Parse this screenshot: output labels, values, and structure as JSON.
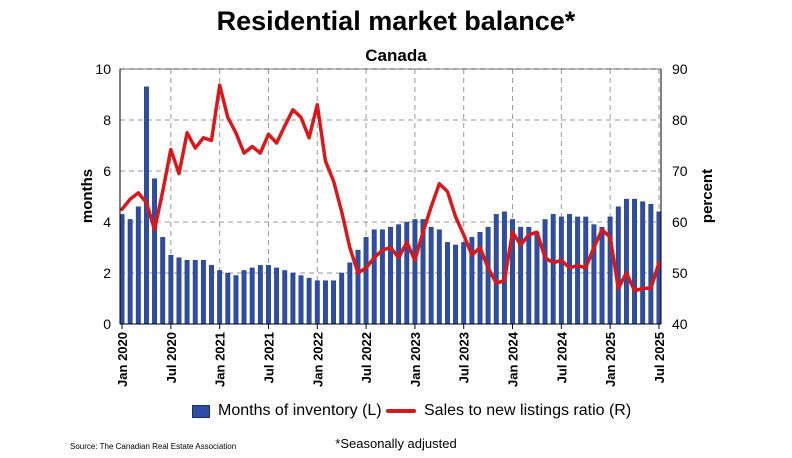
{
  "chart_data": {
    "type": "bar+line",
    "title": "Residential market balance*",
    "subtitle": "Canada",
    "y_left_label": "months",
    "y_right_label": "percent",
    "y_left_lim": [
      0,
      10
    ],
    "y_left_ticks": [
      "0",
      "2",
      "4",
      "6",
      "8",
      "10"
    ],
    "y_right_lim": [
      40,
      90
    ],
    "y_right_ticks": [
      "40",
      "50",
      "60",
      "70",
      "80",
      "90"
    ],
    "x_tick_labels": [
      "Jan 2020",
      "Jul 2020",
      "Jan 2021",
      "Jul 2021",
      "Jan 2022",
      "Jul 2022",
      "Jan 2023",
      "Jul 2023",
      "Jan 2024",
      "Jul 2024",
      "Jan 2025",
      "Jul 2025"
    ],
    "grid": true,
    "legend_position": "bottom",
    "months": [
      "2020-01",
      "2020-02",
      "2020-03",
      "2020-04",
      "2020-05",
      "2020-06",
      "2020-07",
      "2020-08",
      "2020-09",
      "2020-10",
      "2020-11",
      "2020-12",
      "2021-01",
      "2021-02",
      "2021-03",
      "2021-04",
      "2021-05",
      "2021-06",
      "2021-07",
      "2021-08",
      "2021-09",
      "2021-10",
      "2021-11",
      "2021-12",
      "2022-01",
      "2022-02",
      "2022-03",
      "2022-04",
      "2022-05",
      "2022-06",
      "2022-07",
      "2022-08",
      "2022-09",
      "2022-10",
      "2022-11",
      "2022-12",
      "2023-01",
      "2023-02",
      "2023-03",
      "2023-04",
      "2023-05",
      "2023-06",
      "2023-07",
      "2023-08",
      "2023-09",
      "2023-10",
      "2023-11",
      "2023-12",
      "2024-01",
      "2024-02",
      "2024-03",
      "2024-04",
      "2024-05",
      "2024-06",
      "2024-07",
      "2024-08",
      "2024-09",
      "2024-10",
      "2024-11",
      "2024-12",
      "2025-01",
      "2025-02",
      "2025-03",
      "2025-04",
      "2025-05",
      "2025-06",
      "2025-07"
    ],
    "series": [
      {
        "name": "Months of inventory (L)",
        "kind": "bar",
        "axis": "left",
        "color": "#2e4ea3",
        "values": [
          4.3,
          4.1,
          4.6,
          9.3,
          5.7,
          3.4,
          2.7,
          2.6,
          2.5,
          2.5,
          2.5,
          2.3,
          2.1,
          2.0,
          1.9,
          2.1,
          2.2,
          2.3,
          2.3,
          2.2,
          2.1,
          2.0,
          1.9,
          1.8,
          1.7,
          1.7,
          1.7,
          2.0,
          2.4,
          2.9,
          3.4,
          3.7,
          3.7,
          3.8,
          3.9,
          4.0,
          4.1,
          4.1,
          3.8,
          3.7,
          3.2,
          3.1,
          3.2,
          3.4,
          3.6,
          3.8,
          4.3,
          4.4,
          4.1,
          3.8,
          3.8,
          3.6,
          4.1,
          4.3,
          4.2,
          4.3,
          4.2,
          4.2,
          3.9,
          3.8,
          4.2,
          4.6,
          4.9,
          4.9,
          4.8,
          4.7,
          4.4
        ]
      },
      {
        "name": "Sales to new listings ratio (R)",
        "kind": "line",
        "axis": "right",
        "color": "#d7191c",
        "values": [
          62.5,
          64.5,
          65.7,
          63.8,
          58.5,
          66.0,
          74.2,
          69.5,
          77.5,
          74.5,
          76.5,
          76.0,
          86.8,
          80.5,
          77.5,
          73.5,
          74.8,
          73.5,
          77.2,
          75.5,
          78.8,
          82.0,
          80.5,
          76.5,
          83.0,
          72.0,
          68.0,
          62.0,
          55.0,
          50.0,
          51.0,
          53.0,
          54.5,
          55.0,
          53.0,
          56.0,
          52.5,
          58.0,
          63.0,
          67.5,
          66.0,
          61.0,
          57.5,
          53.5,
          55.0,
          51.0,
          48.0,
          48.5,
          58.0,
          55.5,
          57.5,
          58.0,
          53.0,
          52.0,
          52.5,
          51.0,
          51.5,
          51.0,
          55.0,
          58.5,
          57.0,
          47.0,
          50.0,
          46.5,
          47.0,
          47.0,
          52.0
        ]
      }
    ]
  },
  "legend": {
    "bar_label": "Months of inventory (L)",
    "line_label": "Sales to new listings ratio (R)"
  },
  "source": "Source: The Canadian Real Estate Association",
  "footnote": "*Seasonally adjusted"
}
